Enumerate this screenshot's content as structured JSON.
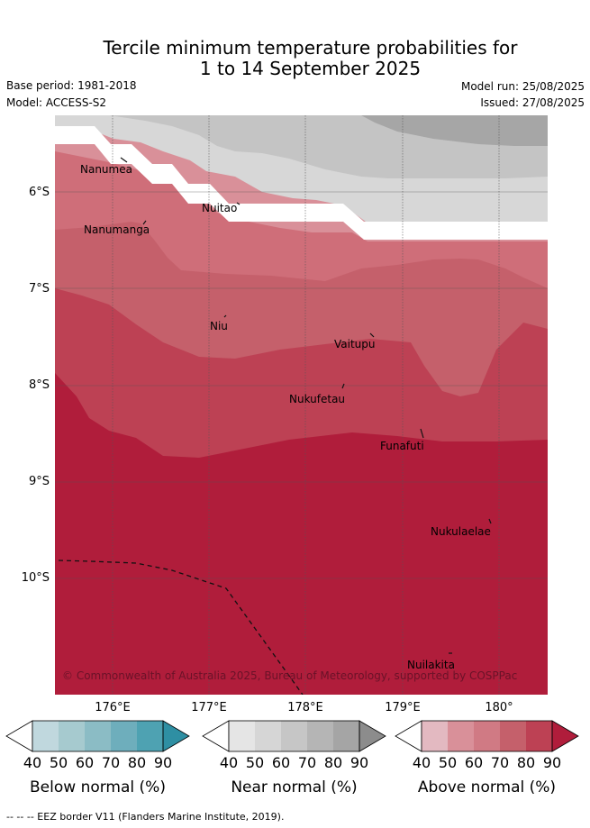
{
  "title": {
    "line1": "Tercile minimum temperature probabilities for",
    "line2": "1 to 14 September 2025"
  },
  "meta": {
    "base_period": "Base period: 1981-2018",
    "model": "Model: ACCESS-S2",
    "model_run": "Model run: 25/08/2025",
    "issued": "Issued: 27/08/2025"
  },
  "map": {
    "lat_labels": [
      "6°S",
      "7°S",
      "8°S",
      "9°S",
      "10°S"
    ],
    "lon_labels": [
      "176°E",
      "177°E",
      "178°E",
      "179°E",
      "180°"
    ],
    "places": [
      "Nanumea",
      "Nuitao",
      "Nanumanga",
      "Niu",
      "Vaitupu",
      "Nukufetau",
      "Funafuti",
      "Nukulaelae",
      "Nuilakita"
    ],
    "credit": "© Commonwealth of Australia 2025, Bureau of Meteorology, supported by COSPPac",
    "colors": {
      "above_90": "#b01d3b",
      "above_80": "#bd4154",
      "above_70": "#c5606b",
      "above_60": "#d07a84",
      "above_50": "#d99099",
      "near_40": "#d7d7d7",
      "near_50": "#c4c4c4",
      "near_60": "#a6a6a6"
    }
  },
  "legend": {
    "tick_values": [
      "40",
      "50",
      "60",
      "70",
      "80",
      "90"
    ],
    "below": {
      "title": "Below normal (%)",
      "colors": [
        "#ffffff",
        "#c0d8de",
        "#a6cacf",
        "#8bbcc5",
        "#6eaebc",
        "#4ea2b2",
        "#2e8fa3"
      ]
    },
    "near": {
      "title": "Near normal (%)",
      "colors": [
        "#ffffff",
        "#e5e5e5",
        "#d6d6d6",
        "#c6c6c6",
        "#b5b5b5",
        "#a5a5a5",
        "#8c8c8c"
      ]
    },
    "above": {
      "title": "Above normal (%)",
      "colors": [
        "#ffffff",
        "#e3b9c1",
        "#d99099",
        "#d07a84",
        "#c5606b",
        "#bd4154",
        "#b01d3b"
      ]
    }
  },
  "footnote": "--  --  -- EEZ border V11 (Flanders Marine Institute, 2019)."
}
